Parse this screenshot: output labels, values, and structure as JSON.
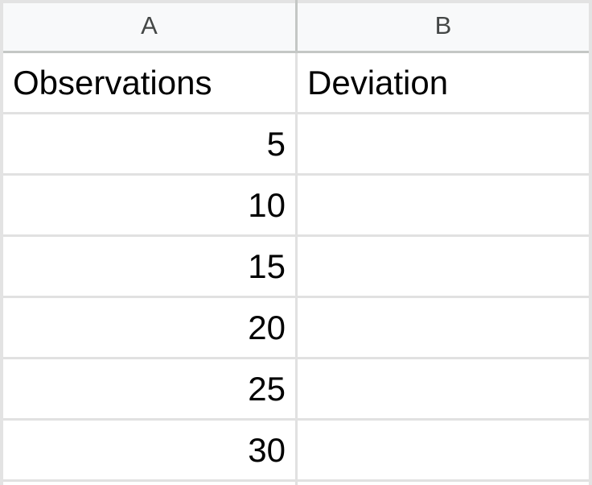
{
  "columns": [
    {
      "letter": "A"
    },
    {
      "letter": "B"
    }
  ],
  "header_row": {
    "a": "Observations",
    "b": "Deviation"
  },
  "rows": [
    {
      "a": "5",
      "b": ""
    },
    {
      "a": "10",
      "b": ""
    },
    {
      "a": "15",
      "b": ""
    },
    {
      "a": "20",
      "b": ""
    },
    {
      "a": "25",
      "b": ""
    },
    {
      "a": "30",
      "b": ""
    }
  ]
}
